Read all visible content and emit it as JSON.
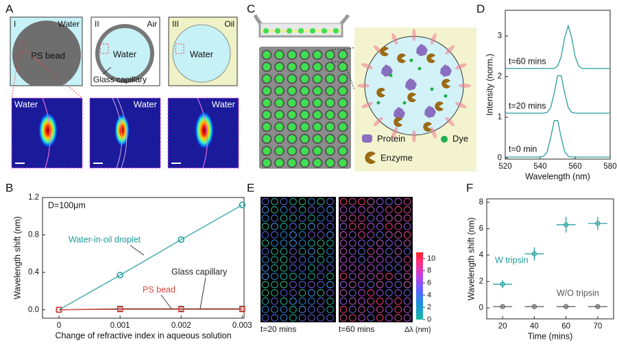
{
  "panel_labels": [
    "A",
    "B",
    "C",
    "D",
    "E",
    "F"
  ],
  "panel_a": {
    "boxes": [
      {
        "number": "I",
        "medium": "Water",
        "inside": "PS bead"
      },
      {
        "number": "II",
        "medium": "Air",
        "inside": "Water"
      },
      {
        "number": "III",
        "medium": "Oil",
        "inside": "Water"
      }
    ],
    "capillary": "Glass capillary",
    "maps": [
      "Water",
      "Water",
      "Water"
    ]
  },
  "panel_c": {
    "legend": [
      "Protein",
      "Dye",
      "Enzyme"
    ]
  },
  "panel_e": {
    "left": "t=20 mins",
    "right": "t=60 mins",
    "colorbar": {
      "label": "Δλ (nm)",
      "range": [
        0,
        11
      ],
      "ticks": [
        0,
        2,
        4,
        6,
        8,
        10
      ]
    }
  },
  "chart_data": [
    {
      "type": "line",
      "x_label": "Change of refractive index in aqueous solution",
      "y_label": "Wavelength shift (nm)",
      "annotation": "D=100μm",
      "x": [
        0,
        0.001,
        0.002,
        0.003
      ],
      "xlim": [
        -0.00027,
        0.00303
      ],
      "xticks": [
        0,
        0.001,
        0.002,
        0.003
      ],
      "ylim": [
        -0.09,
        1.2
      ],
      "yticks": [
        {
          "value": 0,
          "label": "0.0"
        },
        0.4,
        0.8,
        1.2
      ],
      "series": [
        {
          "name": "Water-in-oil droplet",
          "color": "#1a9a9a",
          "marker": "circle",
          "values": [
            0,
            0.37,
            0.75,
            1.12
          ]
        },
        {
          "name": "Glass capillary",
          "color": "#222222",
          "marker": "square",
          "values": [
            0,
            0.01,
            0.01,
            0.01
          ]
        },
        {
          "name": "PS bead",
          "color": "#e0443c",
          "marker": "square",
          "values": [
            0,
            0.005,
            0.005,
            0.005
          ]
        }
      ]
    },
    {
      "type": "line",
      "x_label": "Wavelength (nm)",
      "y_label": "Intensity (norm.)",
      "x": [
        520,
        522,
        524,
        526,
        528,
        530,
        532,
        534,
        536,
        538,
        540,
        542,
        544,
        546,
        548,
        550,
        552,
        554,
        556,
        558,
        560,
        562,
        564,
        566,
        568,
        570,
        572,
        574,
        576,
        578,
        580
      ],
      "xlim": [
        520,
        580
      ],
      "xticks": [
        520,
        540,
        560,
        580
      ],
      "ylim": [
        -0.03,
        3.63
      ],
      "yticks": [
        0,
        1,
        2,
        3
      ],
      "series": [
        {
          "name": "t=0 min",
          "color": "#2a9d9d",
          "values": [
            0.02,
            0.02,
            0.02,
            0.02,
            0.02,
            0.02,
            0.02,
            0.02,
            0.02,
            0.02,
            0.02,
            0.04,
            0.15,
            0.5,
            0.92,
            0.92,
            0.5,
            0.15,
            0.04,
            0.02,
            0.02,
            0.02,
            0.02,
            0.02,
            0.02,
            0.02,
            0.02,
            0.02,
            0.02,
            0.02,
            0.02
          ]
        },
        {
          "name": "t=20 mins",
          "color": "#2a9d9d",
          "values": [
            1.1,
            1.1,
            1.1,
            1.1,
            1.1,
            1.1,
            1.1,
            1.1,
            1.1,
            1.1,
            1.1,
            1.1,
            1.12,
            1.24,
            1.59,
            2.02,
            2.02,
            1.59,
            1.24,
            1.12,
            1.1,
            1.1,
            1.1,
            1.1,
            1.1,
            1.1,
            1.1,
            1.1,
            1.1,
            1.1,
            1.1
          ]
        },
        {
          "name": "t=60 mins",
          "color": "#2a9d9d",
          "values": [
            2.2,
            2.2,
            2.2,
            2.2,
            2.2,
            2.2,
            2.2,
            2.2,
            2.2,
            2.2,
            2.2,
            2.2,
            2.2,
            2.2,
            2.2,
            2.26,
            2.49,
            2.96,
            3.25,
            2.96,
            2.49,
            2.26,
            2.2,
            2.2,
            2.2,
            2.2,
            2.2,
            2.2,
            2.2,
            2.2,
            2.2
          ]
        }
      ]
    },
    {
      "type": "scatter",
      "x_label": "Time (mins)",
      "y_label": "Wavelength shift (nm)",
      "categories": [
        "20",
        "40",
        "60",
        "70"
      ],
      "ylim": [
        -0.83,
        8.26
      ],
      "yticks": [
        0,
        2,
        4,
        6,
        8
      ],
      "series": [
        {
          "name": "W tripsin",
          "color": "#1a9a9a",
          "values": [
            1.8,
            4.1,
            6.3,
            6.4
          ],
          "errors": [
            0.3,
            0.5,
            0.6,
            0.5
          ]
        },
        {
          "name": "W/O tripsin",
          "color": "#555555",
          "values": [
            0.1,
            0.1,
            0.1,
            0.1
          ],
          "errors": [
            0.1,
            0.1,
            0.1,
            0.1
          ]
        }
      ]
    }
  ]
}
